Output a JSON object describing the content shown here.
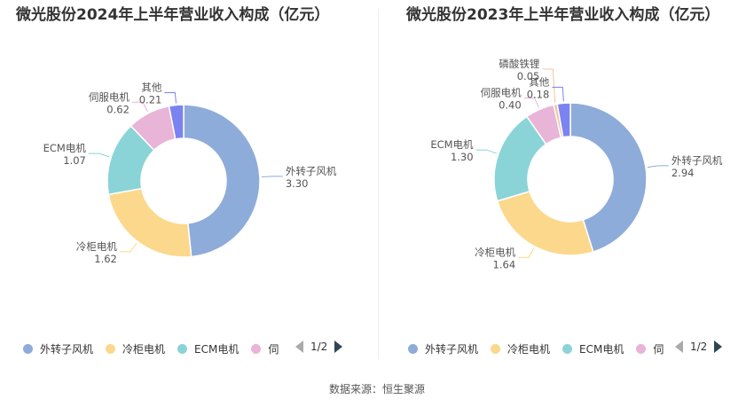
{
  "chart_data": [
    {
      "type": "pie",
      "title": "微光股份2024年上半年营业收入构成（亿元）",
      "categories": [
        "外转子风机",
        "冷柜电机",
        "ECM电机",
        "伺服电机",
        "其他"
      ],
      "values": [
        3.3,
        1.62,
        1.07,
        0.62,
        0.21
      ],
      "value_labels": [
        "3.30",
        "1.62",
        "1.07",
        "0.62",
        "0.21"
      ],
      "legend_visible": [
        "外转子风机",
        "冷柜电机",
        "ECM电机",
        "伺"
      ],
      "legend_placement": "bottom",
      "pager": "1/2"
    },
    {
      "type": "pie",
      "title": "微光股份2023年上半年营业收入构成（亿元）",
      "categories": [
        "外转子风机",
        "冷柜电机",
        "ECM电机",
        "伺服电机",
        "磷酸铁锂",
        "其他"
      ],
      "values": [
        2.94,
        1.64,
        1.3,
        0.4,
        0.05,
        0.18
      ],
      "value_labels": [
        "2.94",
        "1.64",
        "1.30",
        "0.40",
        "0.05",
        "0.18"
      ],
      "legend_visible": [
        "外转子风机",
        "冷柜电机",
        "ECM电机",
        "伺"
      ],
      "legend_placement": "bottom",
      "pager": "1/2"
    }
  ],
  "colors": {
    "外转子风机": "#8eacd9",
    "冷柜电机": "#fcd88c",
    "ECM电机": "#8ad4d8",
    "伺服电机": "#e8b4d8",
    "磷酸铁锂": "#f5c49a",
    "其他": "#7b83f0"
  },
  "source": "数据来源：恒生聚源"
}
